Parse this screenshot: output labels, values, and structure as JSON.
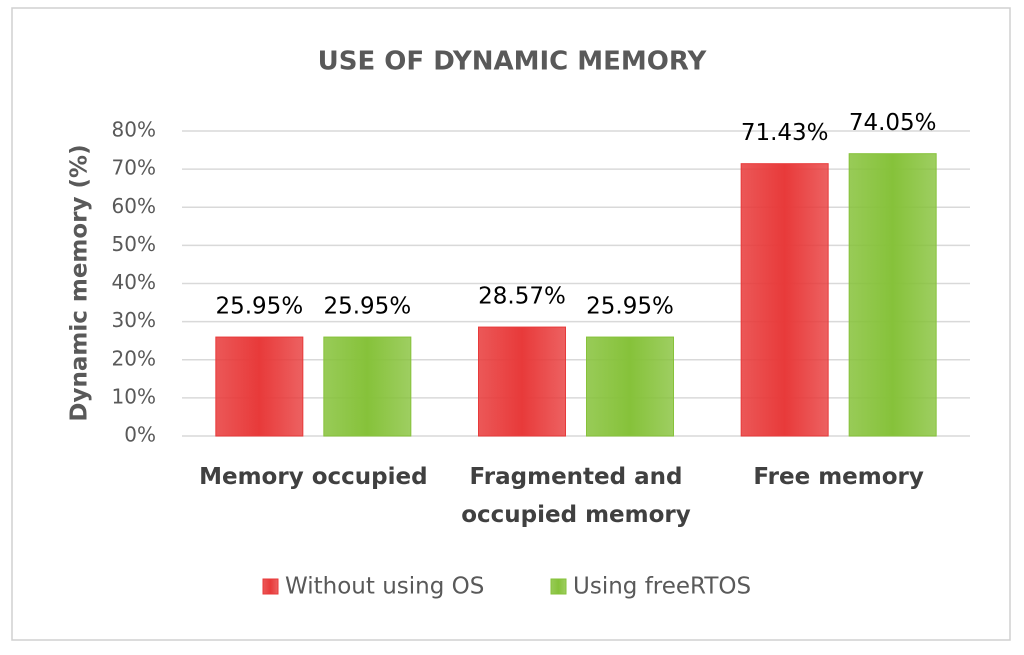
{
  "chart_data": {
    "type": "bar",
    "title": "USE OF  DYNAMIC MEMORY",
    "y_label": "Dynamic memory (%)",
    "categories": [
      "Memory occupied",
      "Fragmented and occupied memory",
      "Free memory"
    ],
    "series": [
      {
        "name": "Without using OS",
        "color": "#e83a3a",
        "values": [
          25.95,
          28.57,
          71.43
        ],
        "value_labels": [
          "25.95%",
          "28.57%",
          "71.43%"
        ]
      },
      {
        "name": "Using freeRTOS",
        "color": "#86c23a",
        "values": [
          25.95,
          25.95,
          74.05
        ],
        "value_labels": [
          "25.95%",
          "25.95%",
          "74.05%"
        ]
      }
    ],
    "ylim": [
      0,
      80
    ],
    "yticks": [
      {
        "value": 0,
        "label": "0%"
      },
      {
        "value": 10,
        "label": "10%"
      },
      {
        "value": 20,
        "label": "20%"
      },
      {
        "value": 30,
        "label": "30%"
      },
      {
        "value": 40,
        "label": "40%"
      },
      {
        "value": 50,
        "label": "50%"
      },
      {
        "value": 60,
        "label": "60%"
      },
      {
        "value": 70,
        "label": "70%"
      },
      {
        "value": 80,
        "label": "80%"
      }
    ],
    "grid": true,
    "legend": "bottom"
  }
}
